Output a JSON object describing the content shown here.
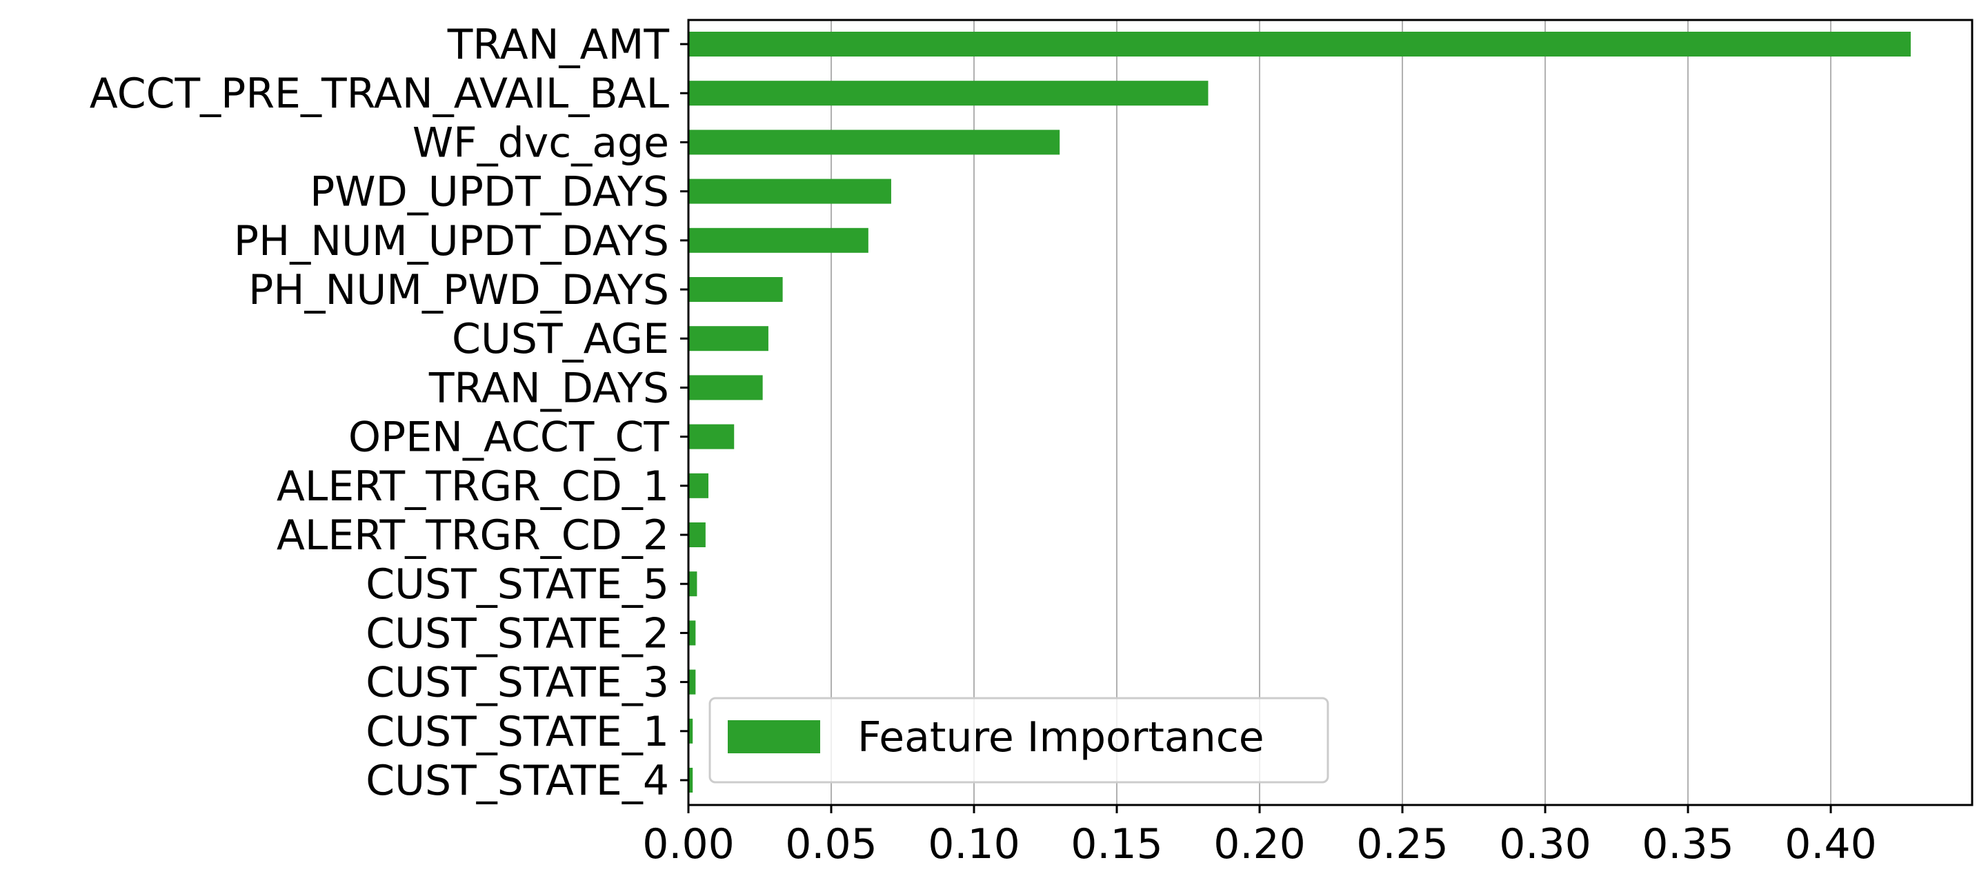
{
  "chart_data": {
    "type": "bar",
    "orientation": "horizontal",
    "categories": [
      "TRAN_AMT",
      "ACCT_PRE_TRAN_AVAIL_BAL",
      "WF_dvc_age",
      "PWD_UPDT_DAYS",
      "PH_NUM_UPDT_DAYS",
      "PH_NUM_PWD_DAYS",
      "CUST_AGE",
      "TRAN_DAYS",
      "OPEN_ACCT_CT",
      "ALERT_TRGR_CD_1",
      "ALERT_TRGR_CD_2",
      "CUST_STATE_5",
      "CUST_STATE_2",
      "CUST_STATE_3",
      "CUST_STATE_1",
      "CUST_STATE_4"
    ],
    "series": [
      {
        "name": "Feature Importance",
        "values": [
          0.428,
          0.182,
          0.13,
          0.071,
          0.063,
          0.033,
          0.028,
          0.026,
          0.016,
          0.007,
          0.006,
          0.003,
          0.0025,
          0.0025,
          0.0015,
          0.0015
        ]
      }
    ],
    "xticks": [
      "0.00",
      "0.05",
      "0.10",
      "0.15",
      "0.20",
      "0.25",
      "0.30",
      "0.35",
      "0.40"
    ],
    "xlim": [
      0,
      0.4495
    ],
    "title": "",
    "xlabel": "",
    "ylabel": "",
    "grid": "x",
    "legend_position": "lower-left",
    "colors": {
      "bar": "#2ca02c",
      "grid": "#b0b0b0",
      "axes": "#000000"
    }
  }
}
